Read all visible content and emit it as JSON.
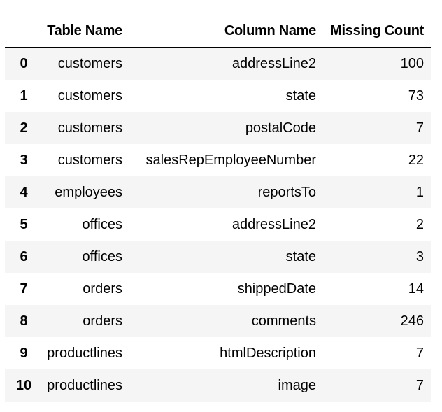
{
  "table": {
    "headers": {
      "index": "",
      "table_name": "Table Name",
      "column_name": "Column Name",
      "missing_count": "Missing Count"
    },
    "rows": [
      {
        "index": "0",
        "table_name": "customers",
        "column_name": "addressLine2",
        "missing_count": "100"
      },
      {
        "index": "1",
        "table_name": "customers",
        "column_name": "state",
        "missing_count": "73"
      },
      {
        "index": "2",
        "table_name": "customers",
        "column_name": "postalCode",
        "missing_count": "7"
      },
      {
        "index": "3",
        "table_name": "customers",
        "column_name": "salesRepEmployeeNumber",
        "missing_count": "22"
      },
      {
        "index": "4",
        "table_name": "employees",
        "column_name": "reportsTo",
        "missing_count": "1"
      },
      {
        "index": "5",
        "table_name": "offices",
        "column_name": "addressLine2",
        "missing_count": "2"
      },
      {
        "index": "6",
        "table_name": "offices",
        "column_name": "state",
        "missing_count": "3"
      },
      {
        "index": "7",
        "table_name": "orders",
        "column_name": "shippedDate",
        "missing_count": "14"
      },
      {
        "index": "8",
        "table_name": "orders",
        "column_name": "comments",
        "missing_count": "246"
      },
      {
        "index": "9",
        "table_name": "productlines",
        "column_name": "htmlDescription",
        "missing_count": "7"
      },
      {
        "index": "10",
        "table_name": "productlines",
        "column_name": "image",
        "missing_count": "7"
      }
    ]
  }
}
